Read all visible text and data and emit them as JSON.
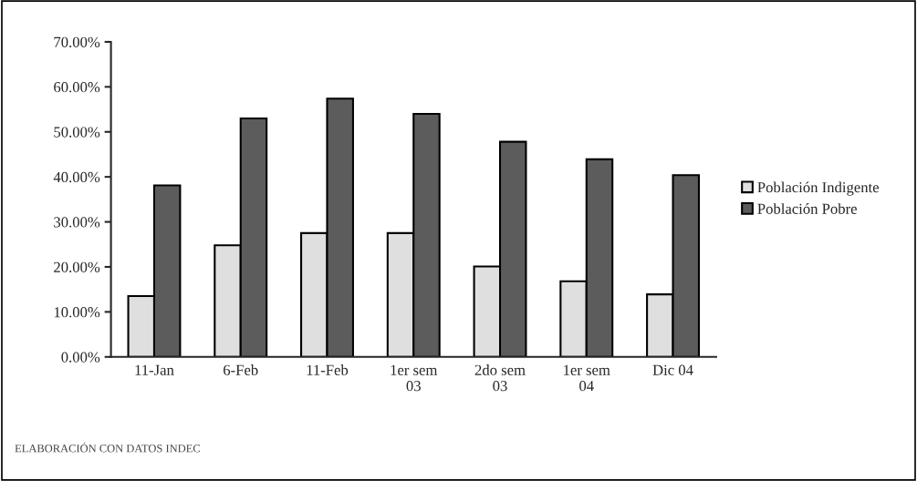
{
  "chart_data": {
    "type": "bar",
    "categories": [
      "11-Jan",
      "6-Feb",
      "11-Feb",
      "1er sem\n03",
      "2do sem\n03",
      "1er sem\n04",
      "Dic 04"
    ],
    "series": [
      {
        "name": "Población Indigente",
        "color": "#dfdfdf",
        "values": [
          13.5,
          24.8,
          27.5,
          27.5,
          20.1,
          16.8,
          13.9
        ]
      },
      {
        "name": "Población Pobre",
        "color": "#5c5c5c",
        "values": [
          38.1,
          53.0,
          57.4,
          54.0,
          47.8,
          43.9,
          40.4
        ]
      }
    ],
    "ylim": [
      0,
      70
    ],
    "yticks": [
      {
        "value": 0,
        "label": "0.00%"
      },
      {
        "value": 10,
        "label": "10.00%"
      },
      {
        "value": 20,
        "label": "20.00%"
      },
      {
        "value": 30,
        "label": "30.00%"
      },
      {
        "value": 40,
        "label": "40.00%"
      },
      {
        "value": 50,
        "label": "50.00%"
      },
      {
        "value": 60,
        "label": "60.00%"
      },
      {
        "value": 70,
        "label": "70.00%"
      }
    ],
    "grid": false,
    "legend": "right",
    "annotations": [
      "ELABORACIÓN CON DATOS INDEC"
    ]
  }
}
